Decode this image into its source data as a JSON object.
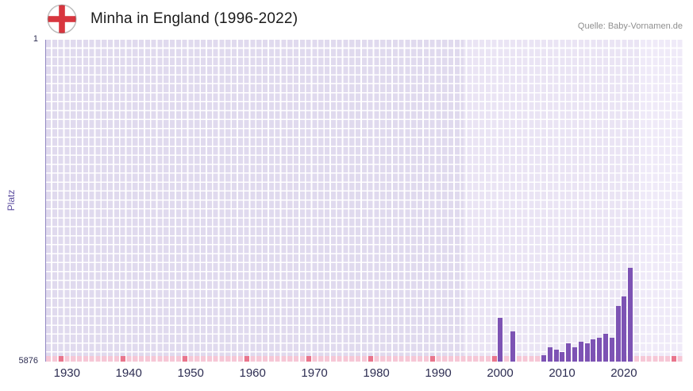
{
  "header": {
    "title": "Minha in England (1996-2022)",
    "source": "Quelle: Baby-Vornamen.de",
    "flag": "england-flag"
  },
  "chart_data": {
    "type": "bar",
    "title": "Minha in England (1996-2022)",
    "ylabel": "Platz",
    "xlabel": "",
    "grid": "on",
    "legend": "none",
    "y_axis": {
      "top_label": "1",
      "bottom_label": "5876",
      "min": 1,
      "max": 5876,
      "inverted": true
    },
    "x_axis": {
      "start_year": 1927,
      "end_year": 2029,
      "tick_years": [
        1930,
        1940,
        1950,
        1960,
        1970,
        1980,
        1990,
        2000,
        2010,
        2020
      ]
    },
    "data_period": {
      "start_year": 1996,
      "end_year": 2022
    },
    "bars": [
      {
        "year": 2000,
        "rank": 5080
      },
      {
        "year": 2002,
        "rank": 5325
      },
      {
        "year": 2007,
        "rank": 5760
      },
      {
        "year": 2008,
        "rank": 5615
      },
      {
        "year": 2009,
        "rank": 5660
      },
      {
        "year": 2010,
        "rank": 5700
      },
      {
        "year": 2011,
        "rank": 5540
      },
      {
        "year": 2012,
        "rank": 5615
      },
      {
        "year": 2013,
        "rank": 5515
      },
      {
        "year": 2014,
        "rank": 5540
      },
      {
        "year": 2015,
        "rank": 5470
      },
      {
        "year": 2016,
        "rank": 5440
      },
      {
        "year": 2017,
        "rank": 5370
      },
      {
        "year": 2018,
        "rank": 5440
      },
      {
        "year": 2019,
        "rank": 4860
      },
      {
        "year": 2020,
        "rank": 4690
      },
      {
        "year": 2021,
        "rank": 4165
      }
    ],
    "baseline_mark_years": [
      1929,
      1939,
      1949,
      1959,
      1969,
      1979,
      1989,
      1999,
      2028
    ],
    "colors": {
      "bar": "#7d53b4",
      "plot_bg": "#e0daee",
      "plot_bg_light": "#eae4f4",
      "plot_bg_lighter": "#efeaf8",
      "grid": "#ffffff",
      "baseline_strip": "#f6c7d6",
      "baseline_mark": "#e9758c",
      "axis_text": "#2d2d52",
      "ylabel_color": "#5c4d9f",
      "title_color": "#1b1b1b",
      "source_color": "#8f8f8f",
      "flag_cross": "#d8363f"
    }
  }
}
